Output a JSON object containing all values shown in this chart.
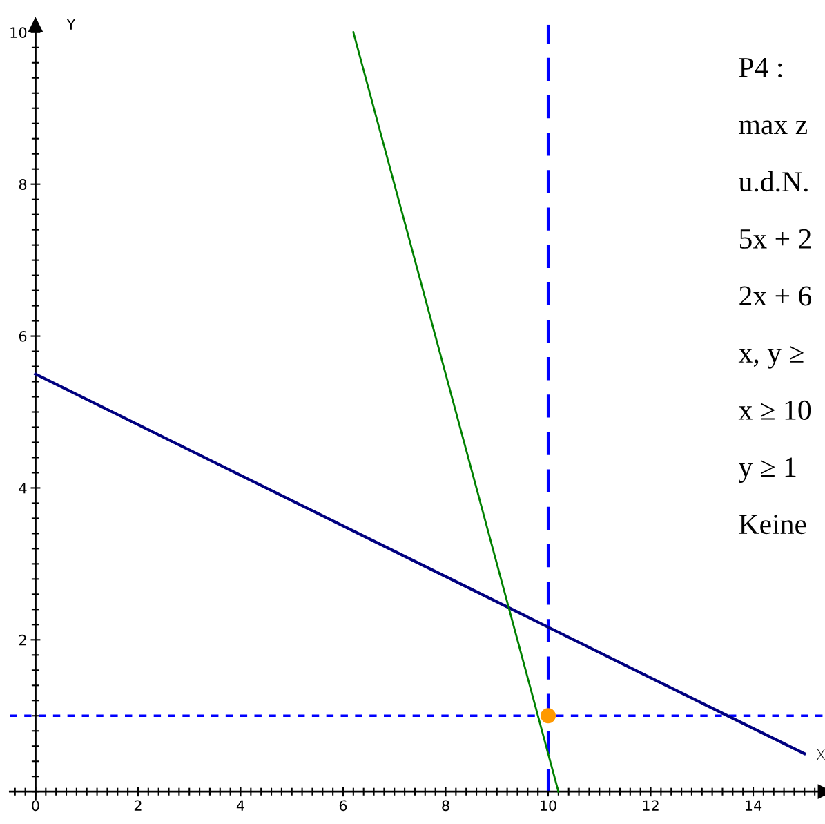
{
  "chart_data": {
    "type": "line",
    "xlabel": "X",
    "ylabel": "Y",
    "xlim": [
      -0.5,
      15.4
    ],
    "ylim": [
      -0.1,
      10.1
    ],
    "xticks": [
      0,
      2,
      4,
      6,
      8,
      10,
      12,
      14
    ],
    "yticks": [
      2,
      4,
      6,
      8,
      10
    ],
    "grid": false,
    "legend": false,
    "marker": "none",
    "line_style": "solid",
    "series": [
      {
        "color": "#000080",
        "x": [
          0,
          15
        ],
        "values": [
          5.5,
          0.5
        ]
      },
      {
        "color": "#008000",
        "x": [
          6.2,
          10.2
        ],
        "values": [
          10,
          0
        ]
      },
      {
        "type": "scatter",
        "marker": "circle",
        "color": "#ff9900",
        "x": [
          10
        ],
        "values": [
          1
        ]
      }
    ],
    "ref_lines": [
      {
        "axis": "x",
        "value": 10,
        "color": "#0000ff",
        "line_style": "dashed"
      },
      {
        "axis": "y",
        "value": 1,
        "color": "#0000ff",
        "line_style": "dotted"
      }
    ],
    "annotations": [
      "P4 :",
      "max z",
      "u.d.N.",
      "5x + 2",
      "2x + 6",
      "x, y ≥",
      "x ≥ 10",
      "y ≥ 1",
      "Keine"
    ]
  }
}
